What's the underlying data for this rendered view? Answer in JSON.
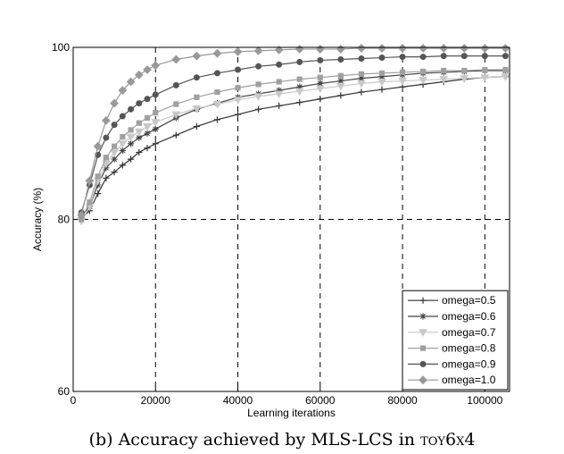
{
  "caption": {
    "prefix": "(b) Accuracy achieved by ",
    "system": "MLS-LCS",
    "middle": " in ",
    "problem": "toy6x4"
  },
  "chart_data": {
    "type": "line",
    "title": "",
    "xlabel": "Learning iterations",
    "ylabel": "Accuracy (%)",
    "xlim": [
      0,
      106000
    ],
    "ylim": [
      60,
      100
    ],
    "xticks": [
      0,
      20000,
      40000,
      60000,
      80000,
      100000
    ],
    "yticks": [
      60,
      80,
      100
    ],
    "grid": "dashed at x=20000,40000,60000,80000,100000 and y=80",
    "legend_position": "bottom-right",
    "x": [
      2000,
      4000,
      6000,
      8000,
      10000,
      12000,
      14000,
      16000,
      18000,
      20000,
      25000,
      30000,
      35000,
      40000,
      45000,
      50000,
      55000,
      60000,
      65000,
      70000,
      75000,
      80000,
      85000,
      90000,
      95000,
      100000,
      105000
    ],
    "series": [
      {
        "name": "omega=0.5",
        "color": "#333333",
        "marker": "plus",
        "values": [
          80.2,
          81.0,
          83.0,
          84.8,
          85.5,
          86.3,
          87.0,
          87.8,
          88.3,
          88.8,
          89.8,
          90.8,
          91.6,
          92.2,
          92.8,
          93.2,
          93.6,
          94.0,
          94.4,
          94.8,
          95.1,
          95.4,
          95.7,
          96.0,
          96.3,
          96.5,
          96.6
        ]
      },
      {
        "name": "omega=0.6",
        "color": "#444444",
        "marker": "star",
        "values": [
          80.4,
          81.5,
          84.0,
          86.0,
          87.0,
          88.0,
          88.8,
          89.5,
          90.0,
          90.5,
          91.8,
          92.8,
          93.5,
          94.2,
          94.6,
          95.0,
          95.4,
          95.8,
          96.1,
          96.4,
          96.6,
          96.8,
          97.0,
          97.1,
          97.2,
          97.3,
          97.3
        ]
      },
      {
        "name": "omega=0.7",
        "color": "#c8c8c8",
        "marker": "triangle-down",
        "values": [
          79.8,
          81.5,
          84.5,
          86.5,
          87.8,
          88.8,
          89.6,
          90.2,
          90.8,
          91.3,
          92.2,
          92.9,
          93.4,
          93.9,
          94.3,
          94.6,
          94.9,
          95.2,
          95.5,
          95.8,
          96.0,
          96.1,
          96.2,
          96.3,
          96.4,
          96.5,
          96.6
        ]
      },
      {
        "name": "omega=0.8",
        "color": "#a0a0a0",
        "marker": "square",
        "values": [
          80.0,
          82.0,
          85.0,
          87.2,
          88.5,
          89.6,
          90.4,
          91.2,
          91.8,
          92.4,
          93.4,
          94.2,
          94.8,
          95.3,
          95.7,
          96.0,
          96.3,
          96.5,
          96.7,
          96.9,
          97.0,
          97.1,
          97.2,
          97.3,
          97.3,
          97.4,
          97.4
        ]
      },
      {
        "name": "omega=0.9",
        "color": "#555555",
        "marker": "circle",
        "values": [
          80.8,
          84.0,
          87.5,
          89.5,
          91.0,
          92.0,
          92.8,
          93.5,
          94.0,
          94.5,
          95.6,
          96.5,
          97.0,
          97.4,
          97.8,
          98.0,
          98.3,
          98.5,
          98.6,
          98.7,
          98.8,
          98.9,
          98.9,
          99.0,
          99.0,
          99.0,
          99.0
        ]
      },
      {
        "name": "omega=1.0",
        "color": "#999999",
        "marker": "diamond",
        "values": [
          80.5,
          84.5,
          88.5,
          91.5,
          93.5,
          95.0,
          96.0,
          96.8,
          97.4,
          97.9,
          98.6,
          99.0,
          99.3,
          99.5,
          99.6,
          99.7,
          99.8,
          99.8,
          99.8,
          99.9,
          99.9,
          99.9,
          99.9,
          99.9,
          99.9,
          99.9,
          99.9
        ]
      }
    ]
  }
}
